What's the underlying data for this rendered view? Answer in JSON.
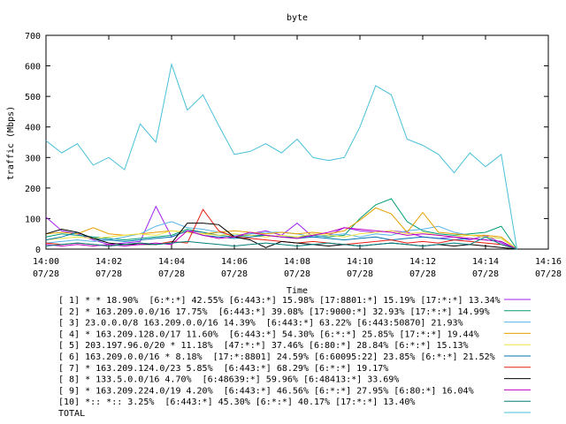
{
  "chart_data": {
    "type": "line",
    "title": "byte",
    "xlabel": "Time",
    "ylabel": "traffic (Mbps)",
    "ylim": [
      0,
      700
    ],
    "yticks": [
      0,
      100,
      200,
      300,
      400,
      500,
      600,
      700
    ],
    "xlim": [
      "14:00",
      "14:16"
    ],
    "xticks": [
      {
        "t": "14:00",
        "d": "07/28"
      },
      {
        "t": "14:02",
        "d": "07/28"
      },
      {
        "t": "14:04",
        "d": "07/28"
      },
      {
        "t": "14:06",
        "d": "07/28"
      },
      {
        "t": "14:08",
        "d": "07/28"
      },
      {
        "t": "14:10",
        "d": "07/28"
      },
      {
        "t": "14:12",
        "d": "07/28"
      },
      {
        "t": "14:14",
        "d": "07/28"
      },
      {
        "t": "14:16",
        "d": "07/28"
      }
    ],
    "x": [
      "14:00:00",
      "14:00:30",
      "14:01:00",
      "14:01:30",
      "14:02:00",
      "14:02:30",
      "14:03:00",
      "14:03:30",
      "14:04:00",
      "14:04:30",
      "14:05:00",
      "14:05:30",
      "14:06:00",
      "14:06:30",
      "14:07:00",
      "14:07:30",
      "14:08:00",
      "14:08:30",
      "14:09:00",
      "14:09:30",
      "14:10:00",
      "14:10:30",
      "14:11:00",
      "14:11:30",
      "14:12:00",
      "14:12:30",
      "14:13:00",
      "14:13:30",
      "14:14:00",
      "14:14:30",
      "14:15:00"
    ],
    "series": [
      {
        "name": "[ 1] * * 18.90%  [6:*:*] 42.55% [6:443:*] 15.98% [17:8801:*] 15.19% [17:*:*] 13.34%",
        "color": "#a020f0",
        "values": [
          105,
          60,
          50,
          30,
          15,
          20,
          25,
          140,
          40,
          60,
          55,
          45,
          40,
          50,
          60,
          45,
          85,
          40,
          45,
          70,
          60,
          55,
          60,
          55,
          40,
          35,
          40,
          30,
          45,
          20,
          0
        ]
      },
      {
        "name": "[ 2] * 163.209.0.0/16 17.75%  [6:443:*] 39.08% [17:9000:*] 32.93% [17:*:*] 14.99%",
        "color": "#009e73",
        "values": [
          40,
          50,
          45,
          40,
          35,
          30,
          35,
          40,
          45,
          65,
          55,
          45,
          40,
          45,
          45,
          40,
          40,
          45,
          40,
          45,
          100,
          145,
          165,
          90,
          60,
          50,
          45,
          50,
          55,
          75,
          0
        ]
      },
      {
        "name": "[ 3] 23.0.0.0/8 163.209.0.0/16 14.39%  [6:443:*] 63.22% [6:443:50870] 21.93%",
        "color": "#56b4e9",
        "values": [
          20,
          25,
          30,
          25,
          30,
          40,
          50,
          75,
          90,
          70,
          65,
          55,
          45,
          50,
          55,
          55,
          50,
          40,
          45,
          50,
          40,
          50,
          45,
          60,
          65,
          75,
          55,
          45,
          40,
          35,
          0
        ]
      },
      {
        "name": "[ 4] * 163.209.128.0/17 11.60%  [6:443:*] 54.30% [6:*:*] 25.85% [17:*:*] 19.44%",
        "color": "#e69f00",
        "values": [
          50,
          55,
          50,
          70,
          50,
          45,
          50,
          55,
          60,
          55,
          50,
          55,
          60,
          55,
          50,
          55,
          50,
          55,
          50,
          60,
          95,
          135,
          115,
          55,
          120,
          55,
          50,
          45,
          45,
          40,
          0
        ]
      },
      {
        "name": "[ 5] 203.197.96.0/20 * 11.18%  [47:*:*] 37.46% [6:80:*] 28.84% [6:*:*] 15.13%",
        "color": "#f0e442",
        "values": [
          30,
          35,
          40,
          35,
          40,
          45,
          50,
          45,
          60,
          55,
          50,
          45,
          50,
          45,
          40,
          45,
          40,
          50,
          45,
          40,
          50,
          55,
          60,
          50,
          55,
          45,
          40,
          45,
          40,
          35,
          0
        ]
      },
      {
        "name": "[ 6] 163.209.0.0/16 * 8.18%  [17:*:8801] 24.59% [6:60095:22] 23.85% [6:*:*] 21.52%",
        "color": "#0072b2",
        "values": [
          30,
          40,
          55,
          35,
          30,
          25,
          30,
          35,
          40,
          60,
          45,
          40,
          35,
          40,
          45,
          40,
          35,
          40,
          35,
          30,
          35,
          40,
          30,
          35,
          40,
          35,
          30,
          35,
          30,
          25,
          0
        ]
      },
      {
        "name": "[ 7] * 163.209.124.0/23 5.85%  [6:443:*] 68.29% [6:*:*] 19.17%",
        "color": "#e51e10",
        "values": [
          20,
          15,
          20,
          15,
          10,
          15,
          20,
          15,
          25,
          20,
          130,
          60,
          40,
          35,
          30,
          25,
          20,
          25,
          20,
          15,
          20,
          25,
          30,
          20,
          25,
          20,
          30,
          25,
          20,
          15,
          0
        ]
      },
      {
        "name": "[ 8] * 133.5.0.0/16 4.70%  [6:48639:*] 59.96% [6:48413:*] 33.69%",
        "color": "#000000",
        "values": [
          50,
          65,
          55,
          35,
          20,
          15,
          15,
          15,
          20,
          85,
          85,
          80,
          40,
          30,
          5,
          25,
          20,
          15,
          10,
          15,
          10,
          15,
          20,
          15,
          10,
          15,
          10,
          15,
          10,
          5,
          0
        ]
      },
      {
        "name": "[ 9] * 163.209.224.0/19 4.20%  [6:443:*] 46.56% [6:*:*] 27.95% [6:80:*] 16.04%",
        "color": "#c000c0",
        "values": [
          15,
          10,
          15,
          10,
          15,
          10,
          15,
          20,
          15,
          60,
          45,
          35,
          40,
          55,
          45,
          40,
          35,
          45,
          55,
          70,
          65,
          60,
          55,
          45,
          50,
          45,
          40,
          35,
          30,
          25,
          0
        ]
      },
      {
        "name": "[10] *:: *:: 3.25%  [6:443:*] 45.30% [6:*:*] 40.17% [17:*:*] 13.40%",
        "color": "#008080",
        "values": [
          10,
          15,
          20,
          15,
          10,
          15,
          20,
          15,
          20,
          25,
          20,
          15,
          10,
          15,
          20,
          15,
          10,
          15,
          20,
          15,
          10,
          15,
          20,
          15,
          10,
          15,
          20,
          15,
          40,
          15,
          0
        ]
      },
      {
        "name": "TOTAL",
        "color": "#4ac0d8",
        "values": [
          355,
          315,
          345,
          275,
          300,
          260,
          410,
          350,
          605,
          455,
          505,
          405,
          310,
          320,
          345,
          315,
          360,
          300,
          290,
          300,
          400,
          535,
          505,
          360,
          340,
          310,
          250,
          315,
          270,
          310,
          0
        ]
      }
    ]
  }
}
